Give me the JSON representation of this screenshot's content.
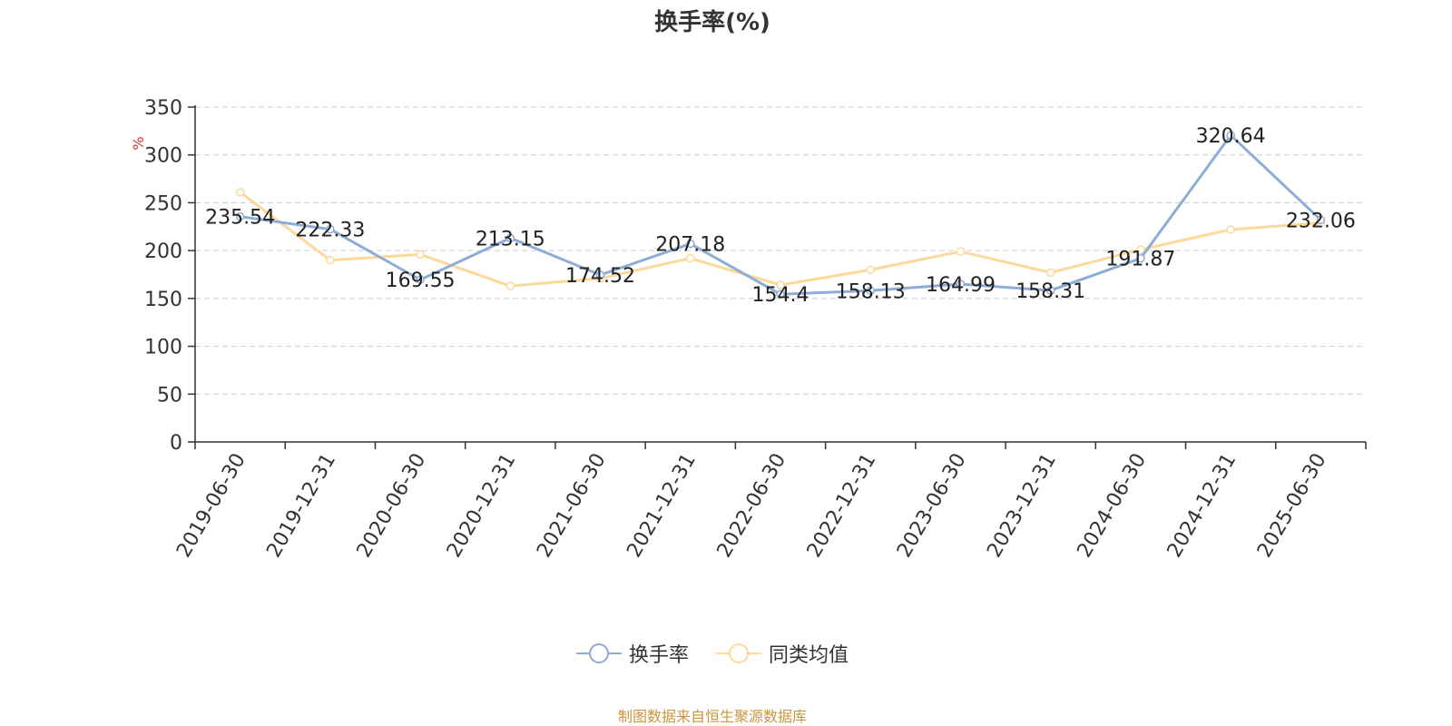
{
  "title": "换手率(%)",
  "source": "制图数据来自恒生聚源数据库",
  "colors": {
    "series1": "#8eadd6",
    "series2": "#fcd99a",
    "unit": "#e03030",
    "source": "#c8963e"
  },
  "chart_data": {
    "type": "line",
    "title": "换手率(%)",
    "ylabel": "%",
    "ylim": [
      0,
      350
    ],
    "yticks": [
      0,
      50,
      100,
      150,
      200,
      250,
      300,
      350
    ],
    "grid": true,
    "legend_position": "bottom",
    "x": [
      "2019-06-30",
      "2019-12-31",
      "2020-06-30",
      "2020-12-31",
      "2021-06-30",
      "2021-12-31",
      "2022-06-30",
      "2022-12-31",
      "2023-06-30",
      "2023-12-31",
      "2024-06-30",
      "2024-12-31",
      "2025-06-30"
    ],
    "series": [
      {
        "name": "换手率",
        "values": [
          235.54,
          222.33,
          169.55,
          213.15,
          174.52,
          207.18,
          154.4,
          158.13,
          164.99,
          158.31,
          191.87,
          320.64,
          232.06
        ],
        "labels": [
          "235.54",
          "222.33",
          "169.55",
          "213.15",
          "174.52",
          "207.18",
          "154.4",
          "158.13",
          "164.99",
          "158.31",
          "191.87",
          "320.64",
          "232.06"
        ]
      },
      {
        "name": "同类均值",
        "values": [
          261,
          190,
          196,
          163,
          171,
          192,
          164,
          180,
          199,
          177,
          201,
          222,
          229
        ]
      }
    ]
  }
}
